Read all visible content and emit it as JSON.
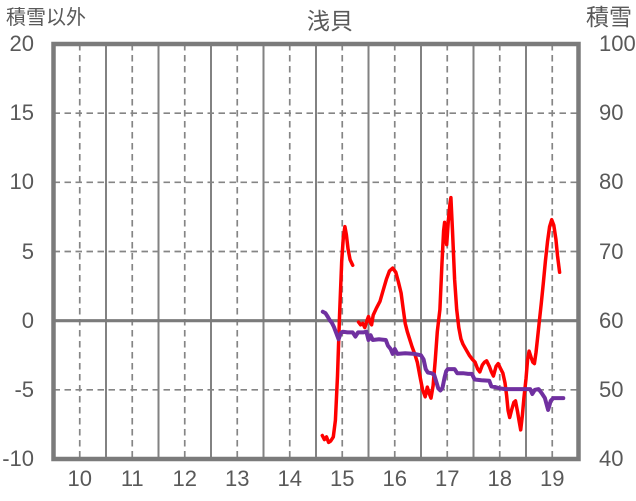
{
  "chart_data": {
    "type": "line",
    "title": "浅貝",
    "x_axis": {
      "min": 10,
      "max": 20,
      "tick_labels": [
        "10",
        "11",
        "12",
        "13",
        "14",
        "15",
        "16",
        "17",
        "18",
        "19"
      ]
    },
    "left_axis": {
      "title": "積雪以外",
      "min": -10,
      "max": 20,
      "tick_step": 5,
      "tick_labels": [
        "20",
        "15",
        "10",
        "5",
        "0",
        "-5",
        "-10"
      ]
    },
    "right_axis": {
      "title": "積雪",
      "min": 40,
      "max": 100,
      "tick_step": 10,
      "tick_labels": [
        "100",
        "90",
        "80",
        "70",
        "60",
        "50",
        "40"
      ]
    },
    "grid": {
      "border_color": "#7b7b7b",
      "solid_color": "#828282",
      "dashed_color": "#858585",
      "zero_line_color": "#7b7b7b",
      "background": "#ffffff"
    },
    "series": [
      {
        "name": "積雪以外",
        "axis": "left",
        "color": "#ff0000",
        "width": 3.5,
        "segments": [
          [
            [
              15.12,
              -8.3
            ],
            [
              15.16,
              -8.6
            ],
            [
              15.2,
              -8.4
            ],
            [
              15.24,
              -8.8
            ],
            [
              15.28,
              -8.7
            ],
            [
              15.33,
              -8.4
            ],
            [
              15.37,
              -7.2
            ],
            [
              15.41,
              -4.0
            ],
            [
              15.45,
              0.5
            ],
            [
              15.49,
              4.3
            ],
            [
              15.52,
              6.0
            ],
            [
              15.55,
              6.8
            ],
            [
              15.58,
              6.2
            ],
            [
              15.61,
              5.2
            ],
            [
              15.65,
              4.4
            ],
            [
              15.7,
              4.0
            ]
          ],
          [
            [
              15.81,
              -0.1
            ],
            [
              15.85,
              -0.3
            ],
            [
              15.89,
              -0.2
            ],
            [
              15.93,
              -0.5
            ],
            [
              15.97,
              0.0
            ],
            [
              16.0,
              0.3
            ],
            [
              16.03,
              -0.1
            ],
            [
              16.06,
              -0.3
            ],
            [
              16.09,
              0.4
            ],
            [
              16.15,
              0.9
            ],
            [
              16.22,
              1.4
            ],
            [
              16.28,
              2.2
            ],
            [
              16.34,
              3.0
            ],
            [
              16.4,
              3.6
            ],
            [
              16.46,
              3.8
            ],
            [
              16.52,
              3.5
            ],
            [
              16.57,
              2.8
            ],
            [
              16.62,
              2.0
            ],
            [
              16.66,
              0.9
            ],
            [
              16.7,
              -0.2
            ],
            [
              16.74,
              -0.8
            ],
            [
              16.78,
              -1.3
            ],
            [
              16.83,
              -1.9
            ],
            [
              16.88,
              -2.4
            ],
            [
              16.93,
              -3.0
            ],
            [
              16.98,
              -4.0
            ],
            [
              17.03,
              -5.0
            ],
            [
              17.08,
              -5.5
            ],
            [
              17.12,
              -4.8
            ],
            [
              17.16,
              -5.3
            ],
            [
              17.19,
              -5.6
            ],
            [
              17.23,
              -4.7
            ],
            [
              17.27,
              -2.9
            ],
            [
              17.31,
              -0.8
            ],
            [
              17.36,
              0.8
            ],
            [
              17.4,
              4.2
            ],
            [
              17.43,
              6.5
            ],
            [
              17.45,
              7.1
            ],
            [
              17.47,
              6.0
            ],
            [
              17.49,
              5.5
            ],
            [
              17.52,
              7.2
            ],
            [
              17.55,
              8.4
            ],
            [
              17.57,
              8.9
            ],
            [
              17.6,
              6.5
            ],
            [
              17.64,
              3.0
            ],
            [
              17.68,
              0.8
            ],
            [
              17.72,
              -0.5
            ],
            [
              17.76,
              -1.3
            ],
            [
              17.8,
              -1.7
            ],
            [
              17.86,
              -2.1
            ],
            [
              17.92,
              -2.5
            ],
            [
              17.98,
              -2.8
            ],
            [
              18.03,
              -3.0
            ],
            [
              18.08,
              -3.5
            ],
            [
              18.12,
              -3.7
            ],
            [
              18.17,
              -3.2
            ],
            [
              18.21,
              -3.0
            ],
            [
              18.25,
              -2.9
            ],
            [
              18.3,
              -3.3
            ],
            [
              18.34,
              -3.7
            ],
            [
              18.38,
              -4.0
            ],
            [
              18.43,
              -3.3
            ],
            [
              18.47,
              -3.1
            ],
            [
              18.52,
              -3.5
            ],
            [
              18.56,
              -3.8
            ],
            [
              18.6,
              -4.5
            ],
            [
              18.63,
              -5.4
            ],
            [
              18.66,
              -6.5
            ],
            [
              18.69,
              -7.0
            ],
            [
              18.73,
              -6.4
            ],
            [
              18.77,
              -5.9
            ],
            [
              18.8,
              -5.8
            ],
            [
              18.84,
              -6.6
            ],
            [
              18.87,
              -7.3
            ],
            [
              18.9,
              -7.9
            ],
            [
              18.93,
              -6.9
            ],
            [
              18.96,
              -5.6
            ],
            [
              19.0,
              -4.2
            ],
            [
              19.03,
              -2.8
            ],
            [
              19.06,
              -2.2
            ],
            [
              19.1,
              -2.7
            ],
            [
              19.13,
              -3.0
            ],
            [
              19.16,
              -3.1
            ],
            [
              19.19,
              -2.3
            ],
            [
              19.22,
              -1.3
            ],
            [
              19.25,
              -0.2
            ],
            [
              19.29,
              1.2
            ],
            [
              19.33,
              2.7
            ],
            [
              19.37,
              4.3
            ],
            [
              19.41,
              5.7
            ],
            [
              19.45,
              6.8
            ],
            [
              19.49,
              7.3
            ],
            [
              19.53,
              6.9
            ],
            [
              19.57,
              5.9
            ],
            [
              19.6,
              4.7
            ],
            [
              19.64,
              3.5
            ]
          ]
        ]
      },
      {
        "name": "積雪",
        "axis": "right",
        "color": "#7030a0",
        "width": 4,
        "segments": [
          [
            [
              15.13,
              61.3
            ],
            [
              15.18,
              61.1
            ],
            [
              15.22,
              60.6
            ],
            [
              15.26,
              60.1
            ],
            [
              15.3,
              59.7
            ],
            [
              15.34,
              59.1
            ],
            [
              15.38,
              58.3
            ],
            [
              15.43,
              57.3
            ],
            [
              15.47,
              58.2
            ],
            [
              15.51,
              58.4
            ],
            [
              15.6,
              58.3
            ],
            [
              15.7,
              58.3
            ],
            [
              15.75,
              57.7
            ],
            [
              15.8,
              58.3
            ],
            [
              15.9,
              58.3
            ],
            [
              15.96,
              58.4
            ],
            [
              16.0,
              57.2
            ],
            [
              16.04,
              57.9
            ],
            [
              16.08,
              57.2
            ],
            [
              16.2,
              57.3
            ],
            [
              16.33,
              57.2
            ],
            [
              16.37,
              56.4
            ],
            [
              16.42,
              55.9
            ],
            [
              16.46,
              55.2
            ],
            [
              16.5,
              55.9
            ],
            [
              16.55,
              55.2
            ],
            [
              16.7,
              55.3
            ],
            [
              16.88,
              55.2
            ],
            [
              17.0,
              55.0
            ],
            [
              17.05,
              54.4
            ],
            [
              17.09,
              53.0
            ],
            [
              17.13,
              52.5
            ],
            [
              17.2,
              52.4
            ],
            [
              17.25,
              52.2
            ],
            [
              17.29,
              51.2
            ],
            [
              17.33,
              50.2
            ],
            [
              17.37,
              49.9
            ],
            [
              17.41,
              50.3
            ],
            [
              17.45,
              51.8
            ],
            [
              17.48,
              52.7
            ],
            [
              17.51,
              53.0
            ],
            [
              17.64,
              53.0
            ],
            [
              17.69,
              52.4
            ],
            [
              17.8,
              52.4
            ],
            [
              17.9,
              52.3
            ],
            [
              17.97,
              52.3
            ],
            [
              18.02,
              51.5
            ],
            [
              18.15,
              51.4
            ],
            [
              18.3,
              51.3
            ],
            [
              18.34,
              50.5
            ],
            [
              18.42,
              50.4
            ],
            [
              18.5,
              50.2
            ],
            [
              18.6,
              50.1
            ],
            [
              18.8,
              50.1
            ],
            [
              19.0,
              50.1
            ],
            [
              19.08,
              50.1
            ],
            [
              19.12,
              49.4
            ],
            [
              19.17,
              50.0
            ],
            [
              19.24,
              50.1
            ],
            [
              19.3,
              49.5
            ],
            [
              19.36,
              48.8
            ],
            [
              19.42,
              47.1
            ],
            [
              19.47,
              48.4
            ],
            [
              19.52,
              48.8
            ],
            [
              19.6,
              48.8
            ],
            [
              19.71,
              48.8
            ]
          ]
        ]
      }
    ]
  }
}
